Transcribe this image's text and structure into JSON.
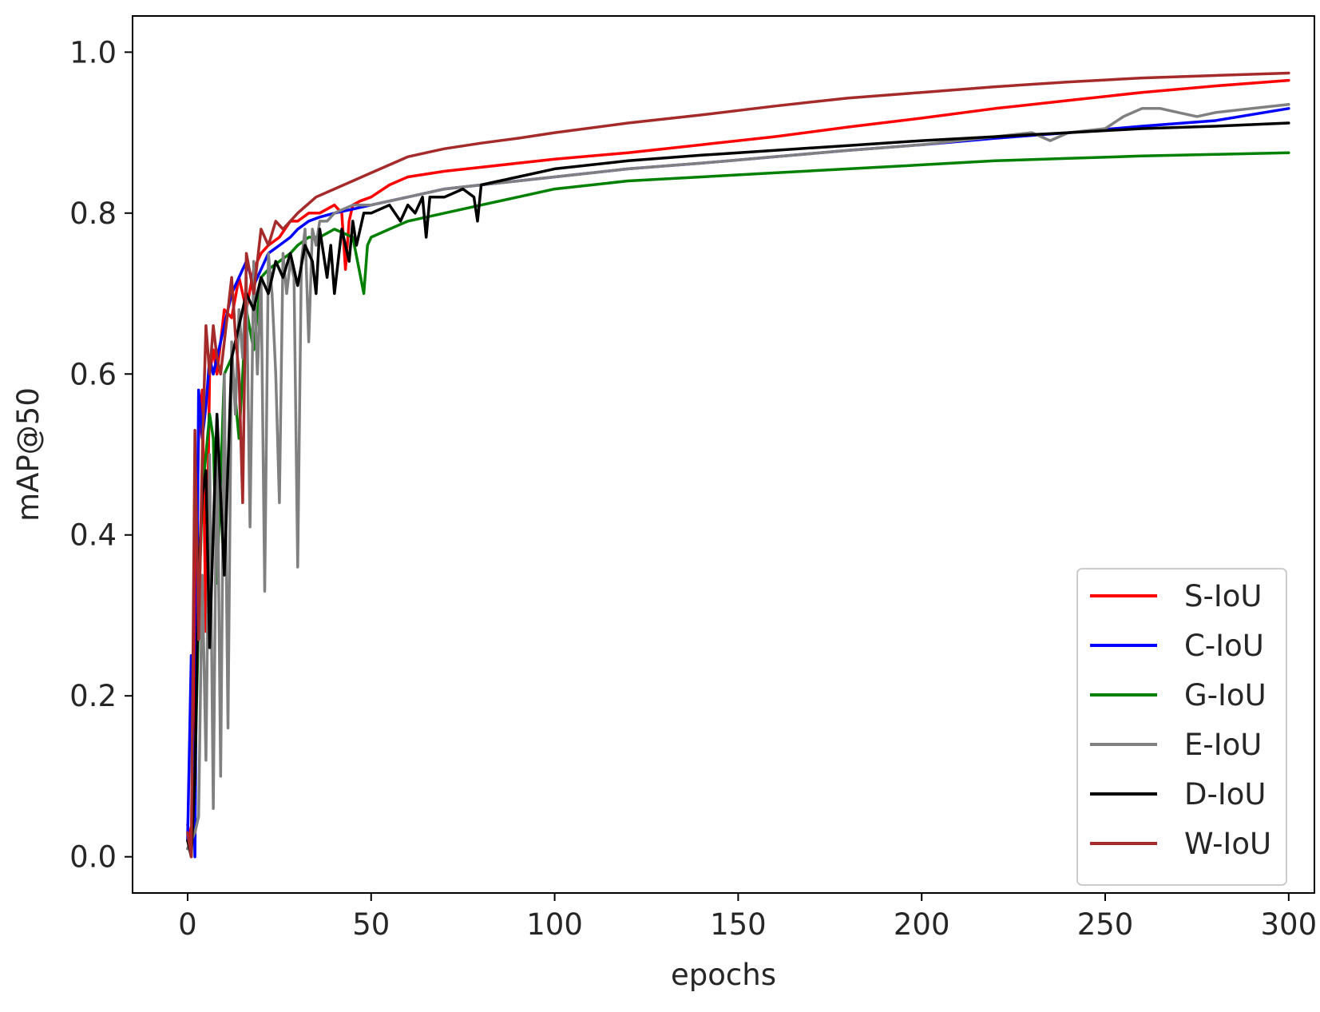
{
  "chart_data": {
    "type": "line",
    "title": "",
    "xlabel": "epochs",
    "ylabel": "mAP@50",
    "xlim": [
      -15,
      307
    ],
    "ylim": [
      -0.045,
      1.045
    ],
    "xticks": [
      0,
      50,
      100,
      150,
      200,
      250,
      300
    ],
    "yticks": [
      0.0,
      0.2,
      0.4,
      0.6,
      0.8,
      1.0
    ],
    "xtick_labels": [
      "0",
      "50",
      "100",
      "150",
      "200",
      "250",
      "300"
    ],
    "ytick_labels": [
      "0.0",
      "0.2",
      "0.4",
      "0.6",
      "0.8",
      "1.0"
    ],
    "grid": false,
    "legend_position": "lower-right",
    "series": [
      {
        "name": "S-IoU",
        "color": "#ff0000",
        "x": [
          0,
          1,
          2,
          3,
          4,
          5,
          6,
          7,
          8,
          10,
          12,
          14,
          16,
          18,
          20,
          22,
          25,
          28,
          30,
          33,
          36,
          40,
          42,
          43,
          44,
          45,
          47,
          50,
          55,
          60,
          70,
          80,
          90,
          100,
          120,
          140,
          160,
          180,
          200,
          220,
          240,
          260,
          280,
          300
        ],
        "y": [
          0.04,
          0.02,
          0.3,
          0.52,
          0.58,
          0.28,
          0.6,
          0.63,
          0.6,
          0.68,
          0.67,
          0.72,
          0.68,
          0.73,
          0.75,
          0.76,
          0.77,
          0.79,
          0.79,
          0.8,
          0.8,
          0.81,
          0.8,
          0.73,
          0.79,
          0.81,
          0.815,
          0.82,
          0.835,
          0.845,
          0.852,
          0.857,
          0.862,
          0.867,
          0.875,
          0.885,
          0.895,
          0.907,
          0.918,
          0.93,
          0.94,
          0.95,
          0.958,
          0.965
        ]
      },
      {
        "name": "C-IoU",
        "color": "#0000ff",
        "x": [
          0,
          1,
          2,
          3,
          4,
          5,
          6,
          7,
          8,
          10,
          12,
          14,
          16,
          18,
          20,
          22,
          25,
          28,
          30,
          33,
          36,
          40,
          45,
          50,
          60,
          70,
          80,
          90,
          100,
          120,
          140,
          160,
          180,
          200,
          220,
          240,
          260,
          280,
          300
        ],
        "y": [
          0.02,
          0.25,
          0.0,
          0.58,
          0.52,
          0.56,
          0.62,
          0.6,
          0.62,
          0.66,
          0.7,
          0.72,
          0.74,
          0.71,
          0.73,
          0.75,
          0.76,
          0.77,
          0.78,
          0.79,
          0.795,
          0.8,
          0.805,
          0.81,
          0.82,
          0.83,
          0.835,
          0.84,
          0.845,
          0.855,
          0.862,
          0.87,
          0.878,
          0.885,
          0.893,
          0.9,
          0.908,
          0.915,
          0.93
        ]
      },
      {
        "name": "G-IoU",
        "color": "#008000",
        "x": [
          0,
          1,
          2,
          3,
          4,
          5,
          6,
          7,
          8,
          10,
          12,
          14,
          16,
          18,
          20,
          22,
          25,
          28,
          30,
          33,
          36,
          40,
          45,
          48,
          49,
          50,
          55,
          60,
          70,
          80,
          90,
          100,
          120,
          140,
          160,
          180,
          200,
          220,
          240,
          260,
          280,
          300
        ],
        "y": [
          0.01,
          0.02,
          0.1,
          0.3,
          0.45,
          0.5,
          0.55,
          0.52,
          0.34,
          0.6,
          0.62,
          0.52,
          0.68,
          0.63,
          0.72,
          0.73,
          0.74,
          0.75,
          0.76,
          0.77,
          0.77,
          0.78,
          0.77,
          0.7,
          0.76,
          0.77,
          0.78,
          0.79,
          0.8,
          0.81,
          0.82,
          0.83,
          0.84,
          0.845,
          0.85,
          0.855,
          0.86,
          0.865,
          0.868,
          0.871,
          0.873,
          0.875
        ]
      },
      {
        "name": "E-IoU",
        "color": "#808080",
        "x": [
          0,
          1,
          2,
          3,
          4,
          5,
          6,
          7,
          8,
          9,
          10,
          11,
          12,
          13,
          14,
          15,
          16,
          17,
          18,
          19,
          20,
          21,
          22,
          23,
          24,
          25,
          26,
          27,
          28,
          29,
          30,
          31,
          32,
          33,
          34,
          35,
          36,
          38,
          40,
          45,
          50,
          60,
          70,
          80,
          100,
          120,
          140,
          160,
          180,
          200,
          220,
          230,
          235,
          240,
          250,
          255,
          260,
          265,
          270,
          275,
          280,
          290,
          300
        ],
        "y": [
          0.01,
          0.02,
          0.03,
          0.05,
          0.35,
          0.12,
          0.5,
          0.06,
          0.55,
          0.1,
          0.6,
          0.16,
          0.64,
          0.55,
          0.68,
          0.62,
          0.72,
          0.41,
          0.74,
          0.6,
          0.72,
          0.33,
          0.75,
          0.7,
          0.6,
          0.44,
          0.75,
          0.7,
          0.74,
          0.72,
          0.36,
          0.74,
          0.78,
          0.64,
          0.78,
          0.76,
          0.79,
          0.79,
          0.8,
          0.81,
          0.81,
          0.82,
          0.83,
          0.835,
          0.845,
          0.855,
          0.862,
          0.87,
          0.878,
          0.885,
          0.895,
          0.9,
          0.89,
          0.9,
          0.905,
          0.92,
          0.93,
          0.93,
          0.925,
          0.92,
          0.925,
          0.93,
          0.935
        ]
      },
      {
        "name": "D-IoU",
        "color": "#000000",
        "x": [
          0,
          1,
          2,
          3,
          4,
          5,
          6,
          8,
          10,
          12,
          14,
          16,
          18,
          20,
          22,
          24,
          26,
          28,
          30,
          32,
          34,
          35,
          36,
          38,
          39,
          40,
          42,
          44,
          45,
          46,
          48,
          50,
          55,
          58,
          60,
          62,
          64,
          65,
          66,
          70,
          75,
          78,
          79,
          80,
          85,
          90,
          100,
          120,
          140,
          160,
          180,
          200,
          220,
          240,
          260,
          280,
          300
        ],
        "y": [
          0.02,
          0.0,
          0.1,
          0.35,
          0.45,
          0.48,
          0.26,
          0.55,
          0.35,
          0.62,
          0.66,
          0.7,
          0.68,
          0.72,
          0.7,
          0.74,
          0.72,
          0.75,
          0.71,
          0.76,
          0.74,
          0.7,
          0.78,
          0.72,
          0.76,
          0.7,
          0.78,
          0.74,
          0.79,
          0.76,
          0.8,
          0.8,
          0.81,
          0.79,
          0.81,
          0.8,
          0.82,
          0.77,
          0.82,
          0.82,
          0.83,
          0.82,
          0.79,
          0.835,
          0.84,
          0.845,
          0.855,
          0.865,
          0.872,
          0.878,
          0.884,
          0.89,
          0.895,
          0.9,
          0.905,
          0.908,
          0.912
        ]
      },
      {
        "name": "W-IoU",
        "color": "#a52a2a",
        "x": [
          0,
          1,
          2,
          3,
          4,
          5,
          6,
          7,
          8,
          9,
          10,
          11,
          12,
          13,
          14,
          15,
          16,
          18,
          20,
          22,
          24,
          26,
          28,
          30,
          35,
          40,
          45,
          50,
          55,
          60,
          65,
          70,
          80,
          90,
          100,
          120,
          140,
          160,
          180,
          200,
          220,
          240,
          260,
          280,
          300
        ],
        "y": [
          0.03,
          0.0,
          0.53,
          0.27,
          0.5,
          0.66,
          0.6,
          0.66,
          0.62,
          0.6,
          0.64,
          0.68,
          0.72,
          0.65,
          0.6,
          0.44,
          0.75,
          0.7,
          0.78,
          0.76,
          0.79,
          0.78,
          0.79,
          0.8,
          0.82,
          0.83,
          0.84,
          0.85,
          0.86,
          0.87,
          0.875,
          0.88,
          0.887,
          0.893,
          0.9,
          0.912,
          0.922,
          0.933,
          0.943,
          0.95,
          0.957,
          0.963,
          0.968,
          0.971,
          0.974
        ]
      }
    ]
  }
}
